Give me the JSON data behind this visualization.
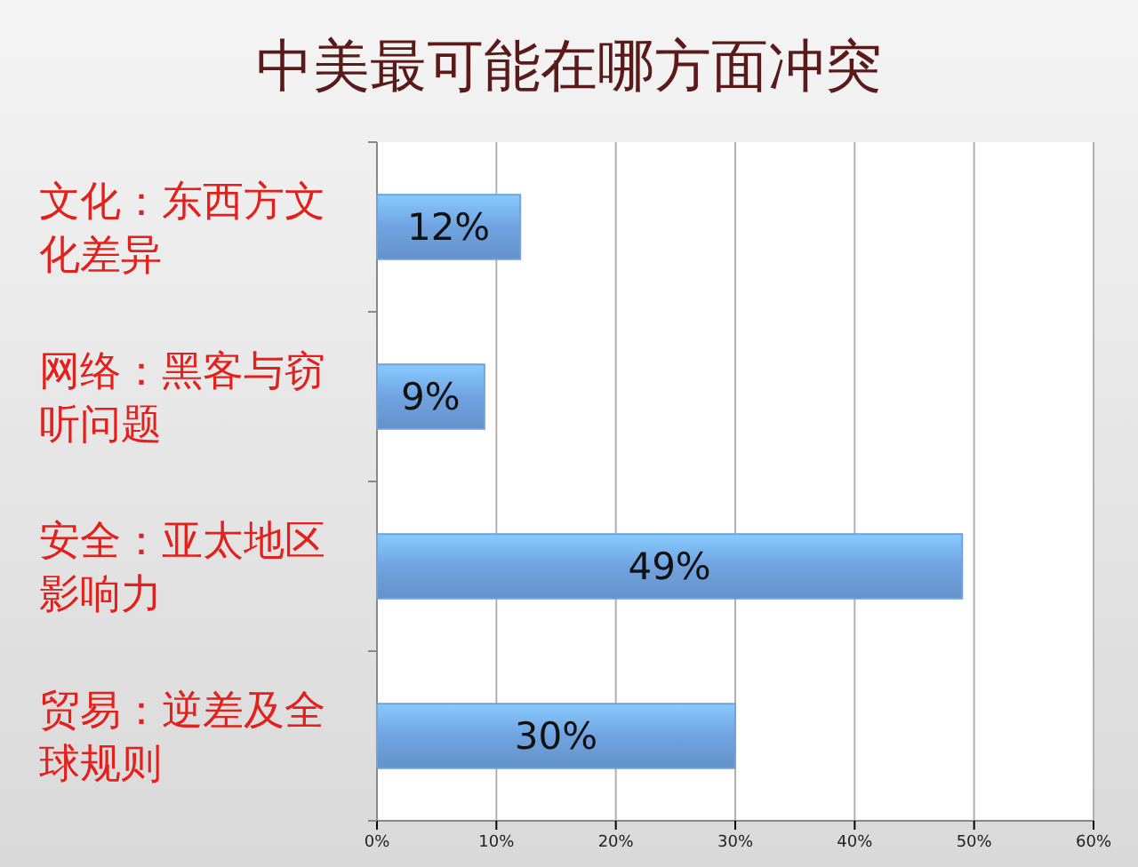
{
  "chart_data": {
    "type": "bar",
    "orientation": "horizontal",
    "title": "中美最可能在哪方面冲突",
    "categories": [
      "文化：东西方文化差异",
      "网络：黑客与窃听问题",
      "安全：亚太地区影响力",
      "贸易：逆差及全球规则"
    ],
    "values": [
      12,
      9,
      49,
      30
    ],
    "color": "#6fa3e0",
    "value_labels": [
      "12%",
      "9%",
      "49%",
      "30%"
    ],
    "xlim": [
      0,
      60
    ],
    "xticks": [
      {
        "value": 0,
        "label": "0%"
      },
      {
        "value": 10,
        "label": "10%"
      },
      {
        "value": 20,
        "label": "20%"
      },
      {
        "value": 30,
        "label": "30%"
      },
      {
        "value": 40,
        "label": "40%"
      },
      {
        "value": 50,
        "label": "50%"
      },
      {
        "value": 60,
        "label": "60%"
      }
    ],
    "grid": "x"
  }
}
